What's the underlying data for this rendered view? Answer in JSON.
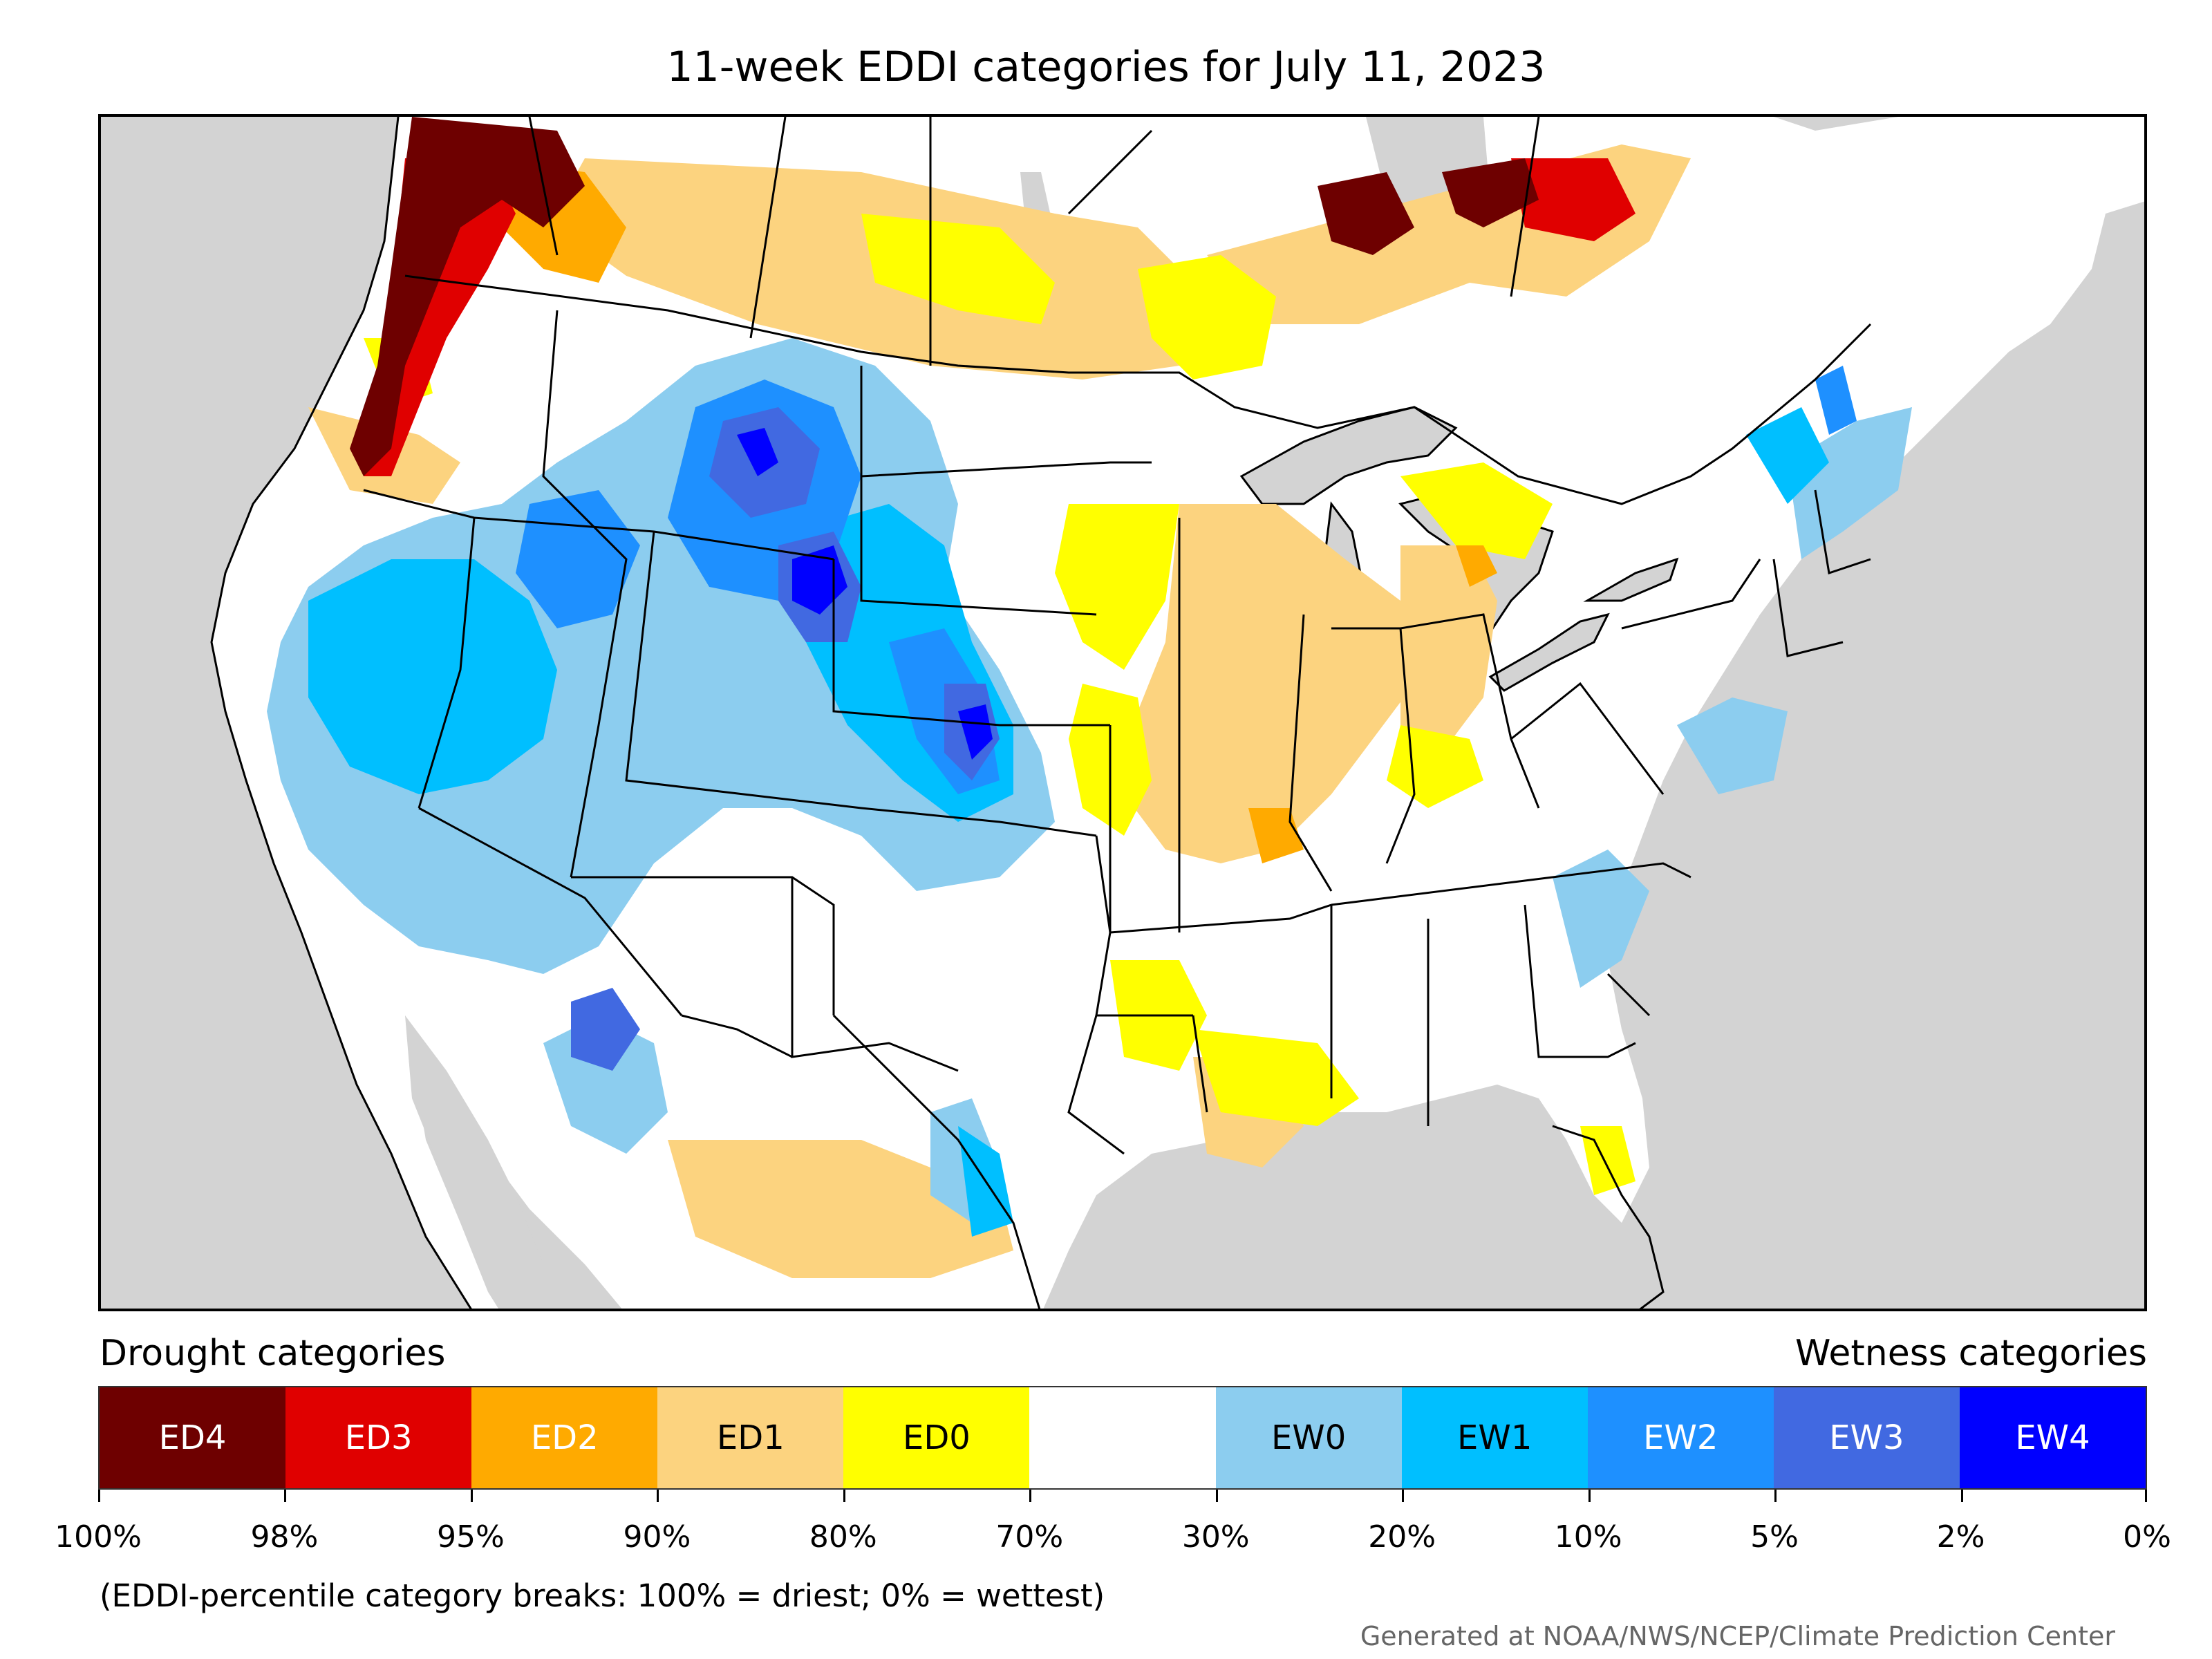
{
  "title": "11-week EDDI categories for July 11, 2023",
  "legend": {
    "left_heading": "Drought categories",
    "right_heading": "Wetness categories",
    "categories": [
      {
        "label": "ED4",
        "color": "#6e0000",
        "text_color": "#ffffff"
      },
      {
        "label": "ED3",
        "color": "#e00000",
        "text_color": "#ffffff"
      },
      {
        "label": "ED2",
        "color": "#ffaa00",
        "text_color": "#ffffff"
      },
      {
        "label": "ED1",
        "color": "#fcd37f",
        "text_color": "#000000"
      },
      {
        "label": "ED0",
        "color": "#ffff00",
        "text_color": "#000000"
      },
      {
        "label": "",
        "color": "#ffffff",
        "text_color": "#000000"
      },
      {
        "label": "EW0",
        "color": "#8ccdef",
        "text_color": "#000000"
      },
      {
        "label": "EW1",
        "color": "#00bfff",
        "text_color": "#000000"
      },
      {
        "label": "EW2",
        "color": "#1e90ff",
        "text_color": "#ffffff"
      },
      {
        "label": "EW3",
        "color": "#4169e1",
        "text_color": "#ffffff"
      },
      {
        "label": "EW4",
        "color": "#0000ff",
        "text_color": "#ffffff"
      }
    ],
    "tick_labels": [
      "100%",
      "98%",
      "95%",
      "90%",
      "80%",
      "70%",
      "30%",
      "20%",
      "10%",
      "5%",
      "2%",
      "0%"
    ]
  },
  "footnote": "(EDDI-percentile category breaks: 100% = driest; 0% = wettest)",
  "credit": "Generated at NOAA/NWS/NCEP/Climate Prediction Center",
  "map": {
    "ocean_color": "#d3d3d3",
    "land_color": "#ffffff",
    "boundary_color": "#000000"
  }
}
